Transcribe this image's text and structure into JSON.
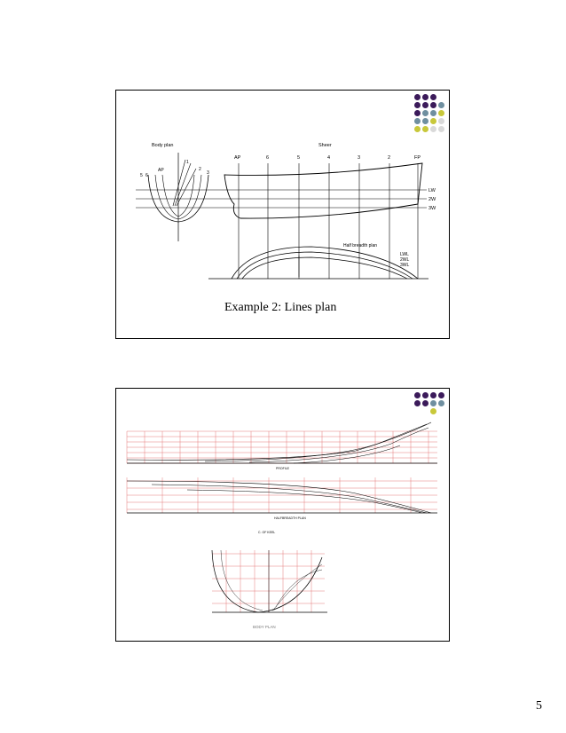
{
  "page_number": "5",
  "slide1": {
    "caption": "Example 2: Lines plan",
    "labels": {
      "body_plan": "Body plan",
      "sheer": "Sheer",
      "half_breadth_plan": "Half breadth plan",
      "stations": [
        "AP",
        "6",
        "5",
        "4",
        "3",
        "2",
        "FP"
      ],
      "waterlines": [
        "LW",
        "2W",
        "3W"
      ],
      "half_breadth_waterlines": [
        "LWL",
        "2WL",
        "3WL"
      ],
      "body_plan_numbers": [
        "5",
        "6",
        "AP",
        "1",
        "2",
        "3"
      ]
    }
  },
  "slide2": {
    "profile_label": "PROFILE",
    "half_breadth_label": "HALFBREADTH PLAN",
    "cl_label": "C. OF KEEL",
    "body_plan_label": "BODY PLAN"
  },
  "theme": {
    "dot_colors": [
      "#3b1a5a",
      "#6f8fa0",
      "#c8c83a",
      "#d9d9d9"
    ]
  }
}
